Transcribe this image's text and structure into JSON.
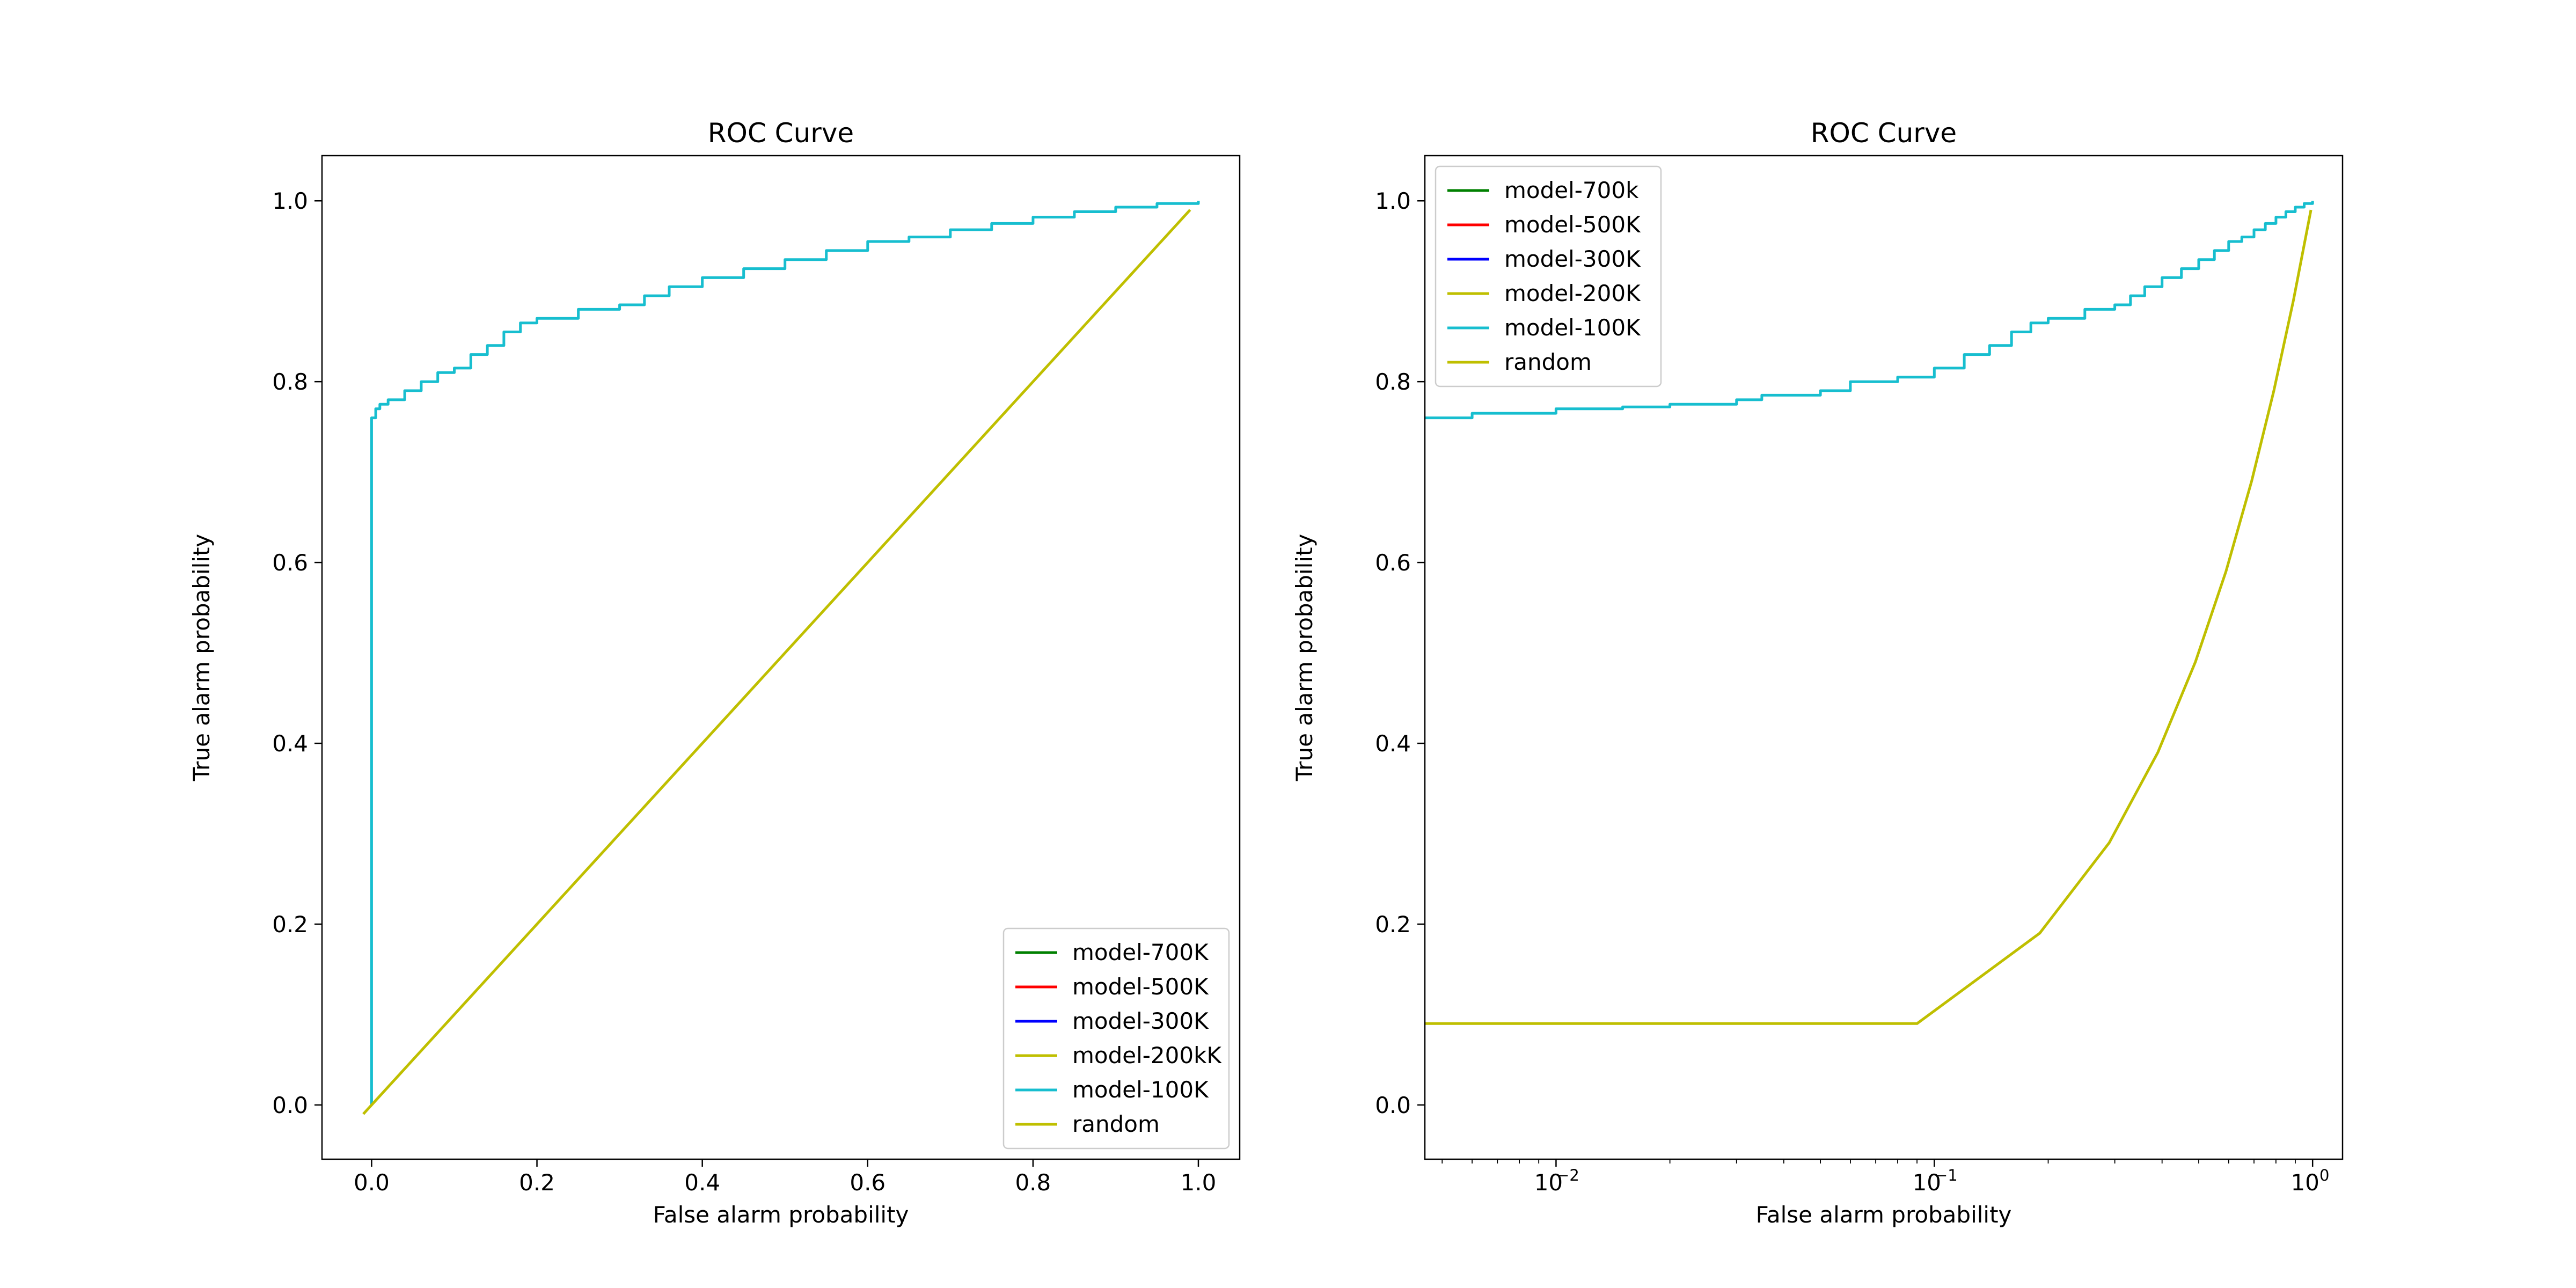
{
  "chart_data": [
    {
      "type": "line",
      "title": "ROC Curve",
      "xlabel": "False alarm probability",
      "ylabel": "True alarm probability",
      "xscale": "linear",
      "xlim": [
        -0.06,
        1.05
      ],
      "ylim": [
        -0.06,
        1.05
      ],
      "xticks": [
        0.0,
        0.2,
        0.4,
        0.6,
        0.8,
        1.0
      ],
      "xtick_labels": [
        "0.0",
        "0.2",
        "0.4",
        "0.6",
        "0.8",
        "1.0"
      ],
      "yticks": [
        0.0,
        0.2,
        0.4,
        0.6,
        0.8,
        1.0
      ],
      "ytick_labels": [
        "0.0",
        "0.2",
        "0.4",
        "0.6",
        "0.8",
        "1.0"
      ],
      "grid": false,
      "legend_position": "lower-right",
      "series": [
        {
          "name": "model-700K",
          "color": "#008000",
          "x": [],
          "y": []
        },
        {
          "name": "model-500K",
          "color": "#ff0000",
          "x": [],
          "y": []
        },
        {
          "name": "model-300K",
          "color": "#0000ff",
          "x": [],
          "y": []
        },
        {
          "name": "model-200kK",
          "color": "#bfbf00",
          "x": [],
          "y": []
        },
        {
          "name": "model-100K",
          "color": "#17becf",
          "x": [
            0.0,
            0.0,
            0.005,
            0.01,
            0.02,
            0.04,
            0.06,
            0.08,
            0.1,
            0.12,
            0.14,
            0.16,
            0.18,
            0.2,
            0.25,
            0.3,
            0.33,
            0.36,
            0.4,
            0.45,
            0.5,
            0.55,
            0.6,
            0.65,
            0.7,
            0.75,
            0.8,
            0.85,
            0.9,
            0.95,
            1.0
          ],
          "y": [
            0.0,
            0.76,
            0.77,
            0.775,
            0.78,
            0.79,
            0.8,
            0.81,
            0.815,
            0.83,
            0.84,
            0.855,
            0.865,
            0.87,
            0.88,
            0.885,
            0.895,
            0.905,
            0.915,
            0.925,
            0.935,
            0.945,
            0.955,
            0.96,
            0.968,
            0.975,
            0.982,
            0.988,
            0.993,
            0.997,
            1.0
          ]
        },
        {
          "name": "random",
          "color": "#bfbf00",
          "x": [
            -0.01,
            0.99
          ],
          "y": [
            -0.01,
            0.99
          ]
        }
      ]
    },
    {
      "type": "line",
      "title": "ROC Curve",
      "xlabel": "False alarm probability",
      "ylabel": "True alarm probability",
      "xscale": "log",
      "xlim": [
        0.0045,
        1.2
      ],
      "ylim": [
        -0.06,
        1.05
      ],
      "xticks": [
        0.01,
        0.1,
        1
      ],
      "xtick_labels": [
        "10",
        "10",
        "10"
      ],
      "xtick_exponents": [
        "−2",
        "−1",
        "0"
      ],
      "yticks": [
        0.0,
        0.2,
        0.4,
        0.6,
        0.8,
        1.0
      ],
      "ytick_labels": [
        "0.0",
        "0.2",
        "0.4",
        "0.6",
        "0.8",
        "1.0"
      ],
      "grid": false,
      "legend_position": "upper-left",
      "series": [
        {
          "name": "model-700k",
          "color": "#008000",
          "x": [],
          "y": []
        },
        {
          "name": "model-500K",
          "color": "#ff0000",
          "x": [],
          "y": []
        },
        {
          "name": "model-300K",
          "color": "#0000ff",
          "x": [],
          "y": []
        },
        {
          "name": "model-200K",
          "color": "#bfbf00",
          "x": [],
          "y": []
        },
        {
          "name": "model-100K",
          "color": "#17becf",
          "x": [
            0.0045,
            0.006,
            0.01,
            0.015,
            0.02,
            0.03,
            0.035,
            0.05,
            0.06,
            0.08,
            0.1,
            0.12,
            0.14,
            0.16,
            0.18,
            0.2,
            0.25,
            0.3,
            0.33,
            0.36,
            0.4,
            0.45,
            0.5,
            0.55,
            0.6,
            0.65,
            0.7,
            0.75,
            0.8,
            0.85,
            0.9,
            0.95,
            1.0
          ],
          "y": [
            0.76,
            0.765,
            0.77,
            0.772,
            0.775,
            0.78,
            0.785,
            0.79,
            0.8,
            0.805,
            0.815,
            0.83,
            0.84,
            0.855,
            0.865,
            0.87,
            0.88,
            0.885,
            0.895,
            0.905,
            0.915,
            0.925,
            0.935,
            0.945,
            0.955,
            0.96,
            0.968,
            0.975,
            0.982,
            0.988,
            0.993,
            0.997,
            1.0
          ]
        },
        {
          "name": "random",
          "color": "#bfbf00",
          "x": [
            0.0045,
            0.09,
            0.19,
            0.29,
            0.39,
            0.49,
            0.59,
            0.69,
            0.79,
            0.89,
            0.99
          ],
          "y": [
            0.09,
            0.09,
            0.19,
            0.29,
            0.39,
            0.49,
            0.59,
            0.69,
            0.79,
            0.89,
            0.99
          ]
        }
      ]
    }
  ]
}
